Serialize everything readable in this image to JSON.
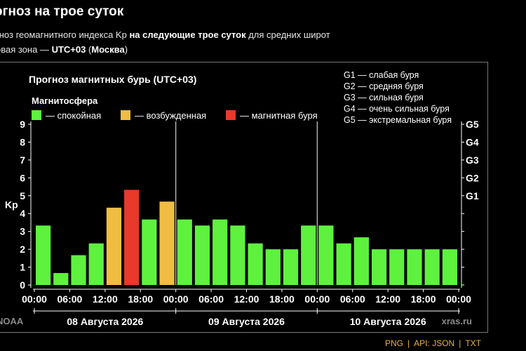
{
  "header": {
    "title": "огноз на трое суток",
    "subtitle_pre": "гноз геомагнитного индекса Kp ",
    "subtitle_bold": "на следующие трое суток",
    "subtitle_post": " для средних широт",
    "tz_pre": "овая зона — ",
    "tz_bold1": "UTC+03",
    "tz_mid": " (",
    "tz_bold2": "Москва",
    "tz_post": ")"
  },
  "footer": {
    "png": "PNG",
    "api": "API:",
    "json": "JSON",
    "txt": "TXT",
    "sep1": "|",
    "sep2": "|"
  },
  "chart_data": {
    "type": "bar",
    "title": "Прогноз магнитных бурь (UTC+03)",
    "legend_heading": "Магнитосфера",
    "legend": [
      {
        "label": "— спокойная",
        "color": "#5ef23e"
      },
      {
        "label": "— возбужденная",
        "color": "#f0bd42"
      },
      {
        "label": "— магнитная буря",
        "color": "#e8392b"
      }
    ],
    "storm_scale": [
      "G1 — слабая буря",
      "G2 — средняя буря",
      "G3 — сильная буря",
      "G4 — очень сильная буря",
      "G5 — экстремальная буря"
    ],
    "ylabel": "Kp",
    "ylim": [
      0,
      9
    ],
    "yticks": [
      "0",
      "1",
      "2",
      "3",
      "4",
      "5",
      "6",
      "7",
      "8",
      "9"
    ],
    "right_ticks": [
      {
        "kp": 5,
        "label": "G1"
      },
      {
        "kp": 6,
        "label": "G2"
      },
      {
        "kp": 7,
        "label": "G3"
      },
      {
        "kp": 8,
        "label": "G4"
      },
      {
        "kp": 9,
        "label": "G5"
      }
    ],
    "xtick_labels": [
      "00:00",
      "06:00",
      "12:00",
      "18:00",
      "00:00",
      "06:00",
      "12:00",
      "18:00",
      "00:00",
      "06:00",
      "12:00",
      "18:00",
      "00:00"
    ],
    "days": [
      "08 Августа 2026",
      "09 Августа 2026",
      "10 Августа 2026"
    ],
    "values": [
      3.33,
      0.67,
      1.67,
      2.33,
      4.33,
      5.33,
      3.67,
      4.67,
      3.67,
      3.33,
      3.67,
      3.33,
      2.33,
      2.0,
      2.0,
      3.33,
      3.33,
      2.33,
      2.67,
      2.0,
      2.0,
      2.0,
      2.0,
      2.0
    ],
    "colors": {
      "quiet": "#5ef23e",
      "active": "#f0bd42",
      "storm": "#e8392b"
    },
    "source_left": "NOAA",
    "source_right": "xras.ru"
  }
}
